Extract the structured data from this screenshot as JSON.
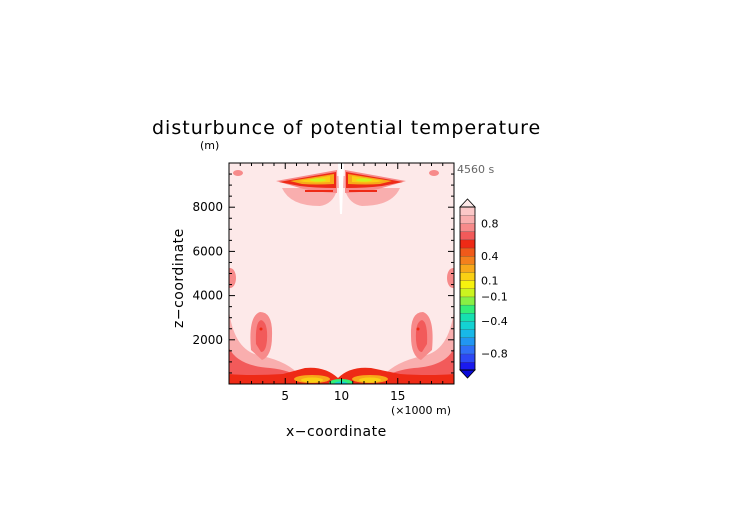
{
  "chart_data": {
    "type": "heatmap",
    "title": "disturbunce of potential temperature",
    "xlabel": "x−coordinate",
    "ylabel": "z−coordinate",
    "y_units": "(m)",
    "x_units": "(×1000 m)",
    "time_label": "4560 s",
    "xlim": [
      0,
      20
    ],
    "ylim": [
      0,
      10000
    ],
    "x_ticks": [
      5,
      10,
      15
    ],
    "y_ticks": [
      2000,
      4000,
      6000,
      8000
    ],
    "colorbar": {
      "levels": [
        -1.0,
        -0.9,
        -0.8,
        -0.7,
        -0.6,
        -0.5,
        -0.4,
        -0.3,
        -0.2,
        -0.1,
        0.0,
        0.1,
        0.2,
        0.3,
        0.4,
        0.5,
        0.6,
        0.7,
        0.8,
        0.9,
        1.0
      ],
      "colors": [
        "#1a1aee",
        "#2c48f5",
        "#2f6ff7",
        "#2196f2",
        "#18b8e8",
        "#14d2d2",
        "#16e0b0",
        "#33ee77",
        "#88f044",
        "#ccf41f",
        "#f7f20e",
        "#fad014",
        "#f8a81a",
        "#f4801c",
        "#f05a1a",
        "#ee2a16",
        "#f25a5a",
        "#f78a8a",
        "#f9aeae",
        "#fbc8c8"
      ],
      "labels": [
        {
          "value": 0.8,
          "text": "0.8"
        },
        {
          "value": 0.4,
          "text": "0.4"
        },
        {
          "value": 0.1,
          "text": "0.1"
        },
        {
          "value": -0.1,
          "text": "−0.1"
        },
        {
          "value": -0.4,
          "text": "−0.4"
        },
        {
          "value": -0.8,
          "text": "−0.8"
        }
      ],
      "extend": "both"
    },
    "background_value": 0.05,
    "features": [
      {
        "kind": "surface_band",
        "x_range": [
          0,
          20
        ],
        "z_top": 300,
        "value": 0.45
      },
      {
        "kind": "surface_peaks",
        "centers_x": [
          8.2,
          12.2
        ],
        "value": 0.12
      },
      {
        "kind": "surface_core",
        "center_x": 10,
        "value": -0.3
      },
      {
        "kind": "lobe",
        "center_x": 3,
        "center_z": 2500,
        "value": 0.3
      },
      {
        "kind": "lobe",
        "center_x": 17,
        "center_z": 2500,
        "value": 0.3
      },
      {
        "kind": "side_blob",
        "center_x": 0.3,
        "center_z": 4800,
        "value": 0.3
      },
      {
        "kind": "side_blob",
        "center_x": 19.7,
        "center_z": 4800,
        "value": 0.3
      },
      {
        "kind": "top_wing",
        "center_x": 7,
        "center_z": 9200,
        "value": 0.1
      },
      {
        "kind": "top_wing",
        "center_x": 13,
        "center_z": 9200,
        "value": 0.1
      },
      {
        "kind": "corner_spot",
        "center_x": 0.6,
        "center_z": 9500,
        "value": 0.3
      },
      {
        "kind": "corner_spot",
        "center_x": 19.4,
        "center_z": 9500,
        "value": 0.3
      }
    ]
  }
}
